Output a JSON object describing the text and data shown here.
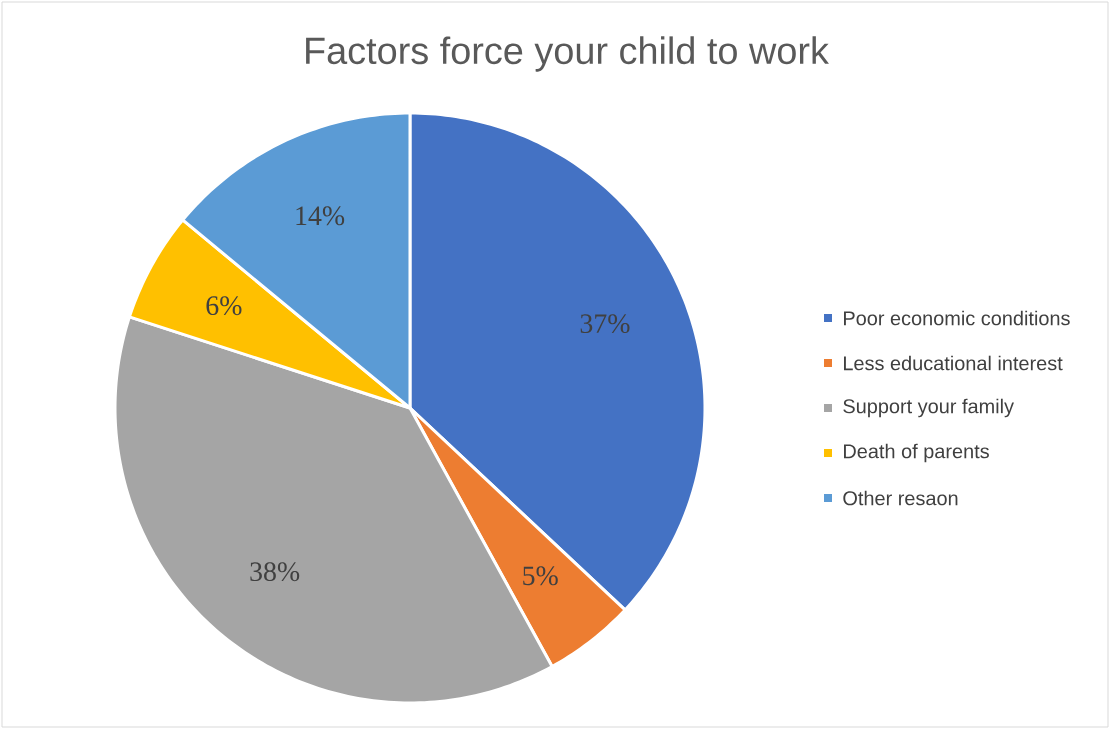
{
  "chart_data": {
    "type": "pie",
    "title": "Factors force your child to work",
    "categories": [
      "Poor economic conditions",
      "Less educational interest",
      "Support your family",
      "Death of parents",
      "Other resaon"
    ],
    "values": [
      37,
      5,
      38,
      6,
      14
    ],
    "colors": [
      "#4472c4",
      "#ed7d31",
      "#a5a5a5",
      "#ffc000",
      "#5b9bd5"
    ],
    "value_labels": [
      "37%",
      "5%",
      "38%",
      "6%",
      "14%"
    ],
    "legend": "right"
  }
}
